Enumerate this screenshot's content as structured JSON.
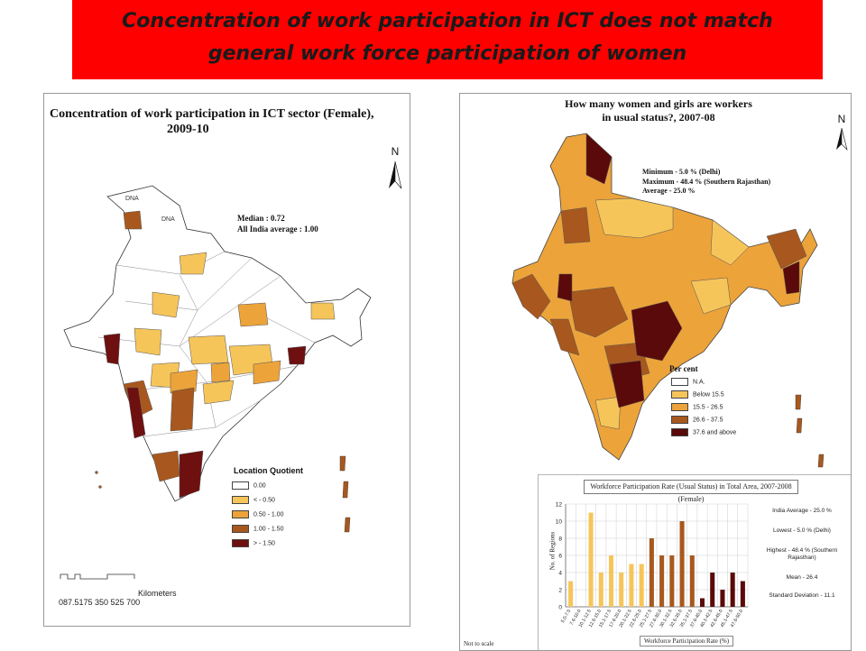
{
  "banner": {
    "title_line1": "Concentration of work participation in ICT does not match",
    "title_line2": "general work force participation of women",
    "color": "#ff0000"
  },
  "left_map": {
    "title_line1": "Concentration of work participation in ICT sector (Female),",
    "title_line2": "2009-10",
    "north": "N",
    "median": "Median : 0.72",
    "average": "All India average : 1.00",
    "dna_labels": [
      "DNA",
      "DNA"
    ],
    "legend_title": "Location Quotient",
    "legend": [
      {
        "label": "0.00",
        "color": "#ffffff"
      },
      {
        "label": "<     - 0.50",
        "color": "#f6c55a"
      },
      {
        "label": "0.50 - 1.00",
        "color": "#eca33a"
      },
      {
        "label": "1.00 - 1.50",
        "color": "#a8581e"
      },
      {
        "label": ">     - 1.50",
        "color": "#6e1010"
      }
    ],
    "scale_numbers": "087.5175   350   525   700",
    "scale_unit": "Kilometers"
  },
  "right_map": {
    "title_line1": "How many women and girls are workers",
    "title_line2": "in usual status?, 2007-08",
    "north": "N",
    "minimum": "Minimum   - 5.0 % (Delhi)",
    "maximum": "Maximum  - 48.4 % (Southern Rajasthan)",
    "average": "Average     - 25.0 %",
    "legend_title": "Per cent",
    "legend": [
      {
        "label": "N.A.",
        "color": "#ffffff"
      },
      {
        "label": "Below 15.5",
        "color": "#f6c55a"
      },
      {
        "label": "15.5 - 26.5",
        "color": "#eca33a"
      },
      {
        "label": "26.6 - 37.5",
        "color": "#a8581e"
      },
      {
        "label": "37.6 and above",
        "color": "#5a0a0a"
      }
    ],
    "not_to_scale": "Not to scale"
  },
  "chart_data": {
    "type": "bar",
    "title": "Workforce Participation Rate (Usual Status) in Total Area, 2007-2008 (Female)",
    "xlabel": "Workforce Participation Rate (%)",
    "ylabel": "No. of Regions",
    "ylim": [
      0,
      12
    ],
    "yticks": [
      0,
      2,
      4,
      6,
      8,
      10,
      12
    ],
    "categories": [
      "5.0-7.5",
      "7.6-10.0",
      "10.1-12.5",
      "12.6-15.0",
      "15.1-17.5",
      "17.6-20.0",
      "20.1-22.5",
      "22.6-25.0",
      "25.1-27.5",
      "27.6-30.0",
      "30.1-32.5",
      "32.6-35.0",
      "35.1-37.5",
      "37.6-40.0",
      "40.1-42.5",
      "42.6-45.0",
      "45.1-47.5",
      "47.6-50.0"
    ],
    "values": [
      3,
      0,
      11,
      4,
      6,
      4,
      5,
      5,
      8,
      6,
      6,
      10,
      6,
      1,
      4,
      2,
      4,
      3
    ],
    "bar_colors": [
      "#f6c55a",
      "#f6c55a",
      "#f6c55a",
      "#f6c55a",
      "#f6c55a",
      "#f6c55a",
      "#f6c55a",
      "#f6c55a",
      "#a8581e",
      "#a8581e",
      "#a8581e",
      "#a8581e",
      "#a8581e",
      "#5a0a0a",
      "#5a0a0a",
      "#5a0a0a",
      "#5a0a0a",
      "#5a0a0a"
    ],
    "grid": true,
    "notes": [
      "India Average - 25.0 %",
      "Lowest - 5.0 % (Delhi)",
      "Highest - 48.4 % (Southern Rajasthan)",
      "Mean - 26.4",
      "Standard Deviation - 11.1"
    ]
  }
}
